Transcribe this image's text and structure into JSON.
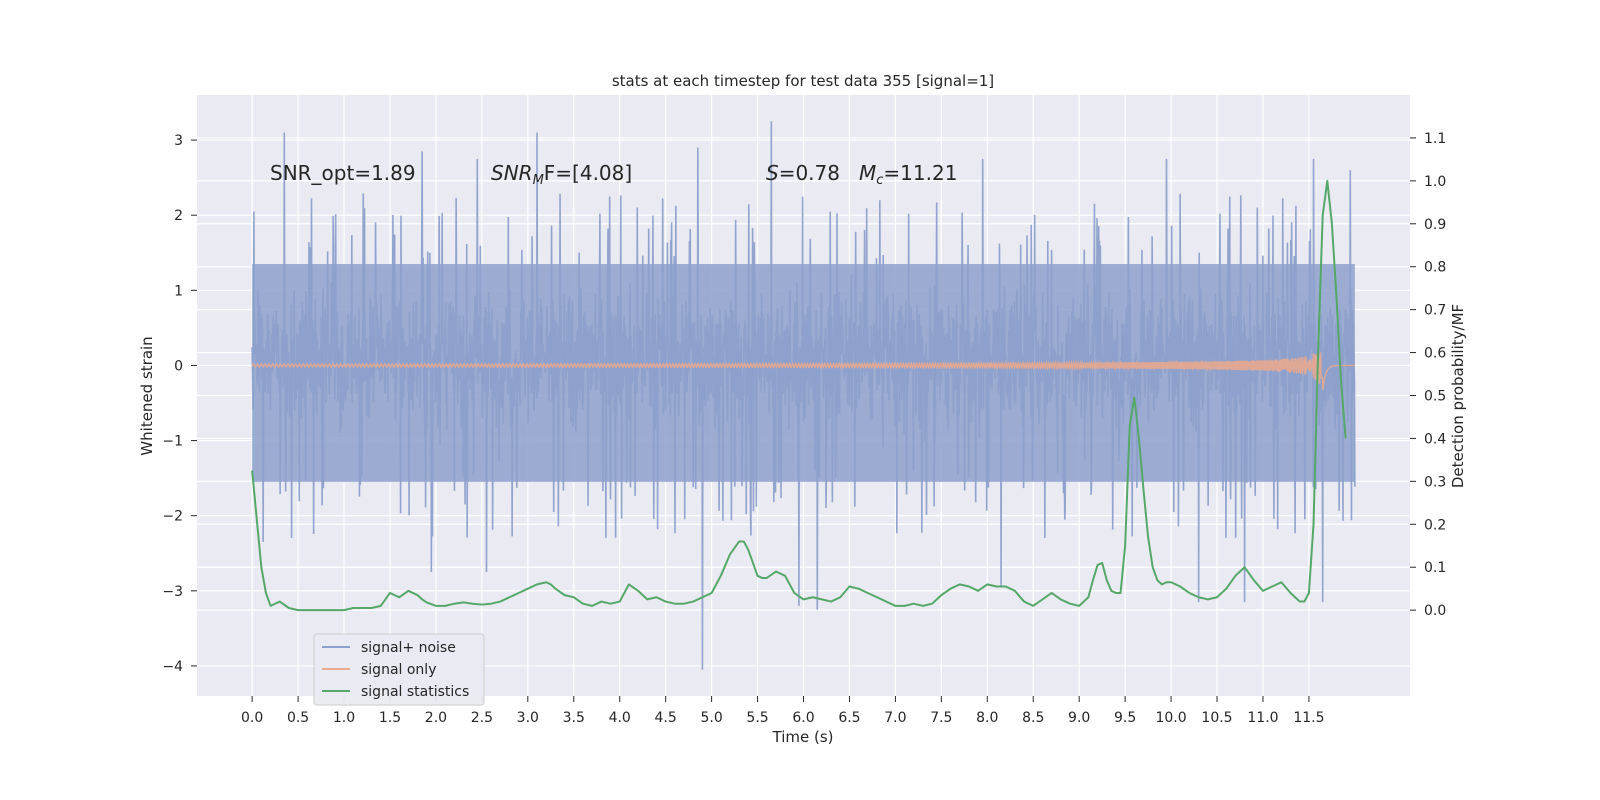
{
  "chart_data": {
    "type": "line",
    "title": "stats at each timestep for test data 355 [signal=1]",
    "xlabel": "Time (s)",
    "ylabel_left": "Whitened strain",
    "ylabel_right": "Detection probability/MF",
    "xlim": [
      -0.6,
      12.6
    ],
    "ylim_left": [
      -4.4,
      3.6
    ],
    "ylim_right": [
      -0.2,
      1.2
    ],
    "x_ticks": [
      0.0,
      0.5,
      1.0,
      1.5,
      2.0,
      2.5,
      3.0,
      3.5,
      4.0,
      4.5,
      5.0,
      5.5,
      6.0,
      6.5,
      7.0,
      7.5,
      8.0,
      8.5,
      9.0,
      9.5,
      10.0,
      10.5,
      11.0,
      11.5
    ],
    "x_tick_labels": [
      "0.0",
      "0.5",
      "1.0",
      "1.5",
      "2.0",
      "2.5",
      "3.0",
      "3.5",
      "4.0",
      "4.5",
      "5.0",
      "5.5",
      "6.0",
      "6.5",
      "7.0",
      "7.5",
      "8.0",
      "8.5",
      "9.0",
      "9.5",
      "10.0",
      "10.5",
      "11.0",
      "11.5"
    ],
    "y_left_ticks": [
      -4,
      -3,
      -2,
      -1,
      0,
      1,
      2,
      3
    ],
    "y_left_tick_labels": [
      "−4",
      "−3",
      "−2",
      "−1",
      "0",
      "1",
      "2",
      "3"
    ],
    "y_right_ticks": [
      0.0,
      0.1,
      0.2,
      0.3,
      0.4,
      0.5,
      0.6,
      0.7,
      0.8,
      0.9,
      1.0,
      1.1
    ],
    "y_right_tick_labels": [
      "0.0",
      "0.1",
      "0.2",
      "0.3",
      "0.4",
      "0.5",
      "0.6",
      "0.7",
      "0.8",
      "0.9",
      "1.0",
      "1.1"
    ],
    "grid": true,
    "legend_placement": "lower-left",
    "annotations": {
      "snr_opt": "SNR_opt=1.89",
      "snr_mf_main": "SNR",
      "snr_mf_sub": "M",
      "snr_mf_rest": "F=[4.08]",
      "s_main": "S",
      "s_rest": "=0.78",
      "mc_main": "M",
      "mc_sub": "c",
      "mc_rest": "=11.21"
    },
    "noise_series": {
      "name": "signal+ noise",
      "color": "#8da0cb",
      "x_range": [
        0.0,
        12.0
      ],
      "typical_min": -1.9,
      "typical_max": 2.2,
      "peaks": [
        {
          "x": 0.02,
          "y": 2.05
        },
        {
          "x": 0.35,
          "y": 3.1
        },
        {
          "x": 1.85,
          "y": 2.85
        },
        {
          "x": 2.45,
          "y": 2.75
        },
        {
          "x": 3.1,
          "y": 3.1
        },
        {
          "x": 4.85,
          "y": 2.9
        },
        {
          "x": 5.65,
          "y": 3.25
        },
        {
          "x": 7.95,
          "y": 2.75
        },
        {
          "x": 9.95,
          "y": 2.75
        },
        {
          "x": 11.55,
          "y": 2.75
        },
        {
          "x": 11.95,
          "y": 2.6
        }
      ],
      "troughs": [
        {
          "x": 0.12,
          "y": -2.35
        },
        {
          "x": 1.95,
          "y": -2.75
        },
        {
          "x": 2.55,
          "y": -2.75
        },
        {
          "x": 4.9,
          "y": -4.05
        },
        {
          "x": 5.95,
          "y": -3.2
        },
        {
          "x": 6.15,
          "y": -3.25
        },
        {
          "x": 8.15,
          "y": -2.95
        },
        {
          "x": 10.3,
          "y": -3.15
        },
        {
          "x": 10.8,
          "y": -3.15
        },
        {
          "x": 11.65,
          "y": -3.15
        }
      ]
    },
    "signal_series": {
      "name": "signal only",
      "color": "#e8a98f",
      "x_range": [
        0.0,
        12.0
      ],
      "merger_x": 11.65,
      "peak_amplitude": 0.35
    },
    "series": [
      {
        "name": "signal statistics",
        "color": "#55a868",
        "axis": "right",
        "x": [
          0.0,
          0.1,
          0.15,
          0.2,
          0.3,
          0.4,
          0.5,
          0.6,
          0.7,
          0.8,
          0.9,
          1.0,
          1.1,
          1.2,
          1.3,
          1.4,
          1.5,
          1.6,
          1.7,
          1.8,
          1.85,
          1.9,
          2.0,
          2.1,
          2.2,
          2.3,
          2.4,
          2.5,
          2.6,
          2.7,
          2.8,
          2.9,
          3.0,
          3.1,
          3.2,
          3.25,
          3.3,
          3.4,
          3.5,
          3.6,
          3.7,
          3.8,
          3.9,
          4.0,
          4.1,
          4.2,
          4.3,
          4.4,
          4.5,
          4.6,
          4.7,
          4.8,
          4.9,
          5.0,
          5.1,
          5.2,
          5.3,
          5.35,
          5.4,
          5.5,
          5.55,
          5.6,
          5.7,
          5.8,
          5.9,
          6.0,
          6.1,
          6.2,
          6.3,
          6.4,
          6.5,
          6.6,
          6.7,
          6.8,
          6.9,
          7.0,
          7.1,
          7.2,
          7.3,
          7.4,
          7.5,
          7.6,
          7.7,
          7.8,
          7.9,
          8.0,
          8.1,
          8.2,
          8.3,
          8.4,
          8.5,
          8.6,
          8.7,
          8.8,
          8.9,
          9.0,
          9.1,
          9.15,
          9.2,
          9.25,
          9.3,
          9.35,
          9.4,
          9.45,
          9.5,
          9.55,
          9.6,
          9.65,
          9.7,
          9.75,
          9.8,
          9.85,
          9.9,
          9.95,
          10.0,
          10.1,
          10.2,
          10.3,
          10.4,
          10.5,
          10.6,
          10.7,
          10.8,
          10.9,
          11.0,
          11.1,
          11.2,
          11.3,
          11.4,
          11.45,
          11.5,
          11.55,
          11.6,
          11.65,
          11.7,
          11.75,
          11.8,
          11.85,
          11.9
        ],
        "values": [
          0.325,
          0.1,
          0.04,
          0.01,
          0.02,
          0.005,
          0.0,
          0.0,
          0.0,
          0.0,
          0.0,
          0.0,
          0.005,
          0.005,
          0.005,
          0.01,
          0.04,
          0.03,
          0.045,
          0.035,
          0.025,
          0.018,
          0.01,
          0.01,
          0.015,
          0.018,
          0.015,
          0.013,
          0.015,
          0.02,
          0.03,
          0.04,
          0.05,
          0.06,
          0.065,
          0.06,
          0.05,
          0.035,
          0.03,
          0.015,
          0.01,
          0.02,
          0.015,
          0.02,
          0.06,
          0.045,
          0.025,
          0.03,
          0.02,
          0.015,
          0.015,
          0.02,
          0.03,
          0.04,
          0.08,
          0.13,
          0.16,
          0.16,
          0.14,
          0.08,
          0.075,
          0.075,
          0.09,
          0.08,
          0.04,
          0.025,
          0.03,
          0.025,
          0.02,
          0.03,
          0.055,
          0.05,
          0.04,
          0.03,
          0.02,
          0.01,
          0.01,
          0.015,
          0.01,
          0.015,
          0.035,
          0.05,
          0.06,
          0.055,
          0.045,
          0.06,
          0.055,
          0.055,
          0.045,
          0.02,
          0.01,
          0.025,
          0.04,
          0.025,
          0.015,
          0.01,
          0.03,
          0.07,
          0.105,
          0.11,
          0.07,
          0.045,
          0.04,
          0.04,
          0.15,
          0.43,
          0.495,
          0.4,
          0.28,
          0.17,
          0.1,
          0.07,
          0.06,
          0.065,
          0.065,
          0.055,
          0.04,
          0.03,
          0.025,
          0.03,
          0.05,
          0.08,
          0.1,
          0.07,
          0.045,
          0.055,
          0.065,
          0.04,
          0.02,
          0.02,
          0.04,
          0.2,
          0.6,
          0.92,
          1.0,
          0.9,
          0.73,
          0.53,
          0.4
        ]
      }
    ]
  }
}
